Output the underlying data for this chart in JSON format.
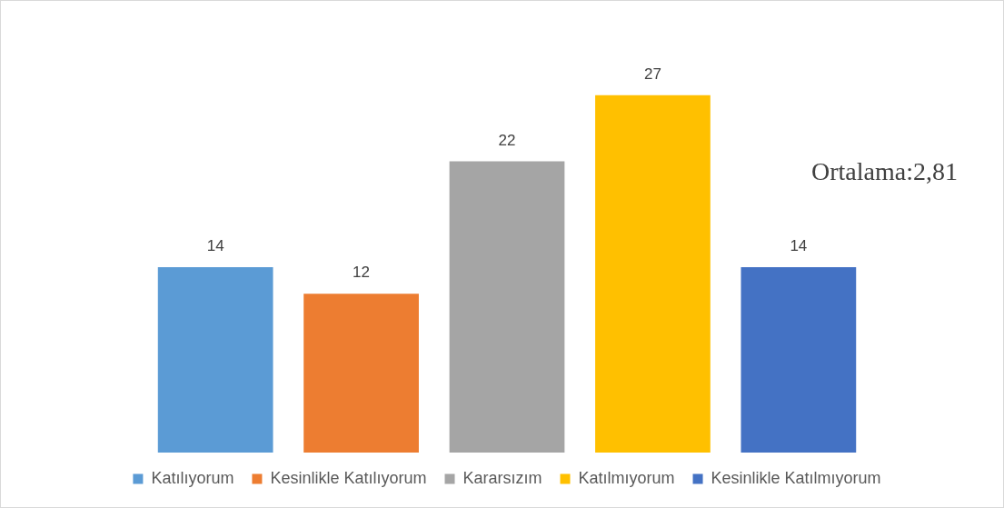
{
  "chart_data": {
    "type": "bar",
    "categories": [
      null
    ],
    "series": [
      {
        "name": "Katılıyorum",
        "color": "#5b9bd5",
        "values": [
          14
        ]
      },
      {
        "name": "Kesinlikle Katılıyorum",
        "color": "#ed7d31",
        "values": [
          12
        ]
      },
      {
        "name": "Kararsızım",
        "color": "#a5a5a5",
        "values": [
          22
        ]
      },
      {
        "name": "Katılmıyorum",
        "color": "#ffc000",
        "values": [
          27
        ]
      },
      {
        "name": "Kesinlikle Katılmıyorum",
        "color": "#4472c4",
        "values": [
          14
        ]
      }
    ],
    "data_labels": true,
    "legend": "bottom",
    "grid": false,
    "annotations": [
      "Ortalama:2,81"
    ]
  }
}
